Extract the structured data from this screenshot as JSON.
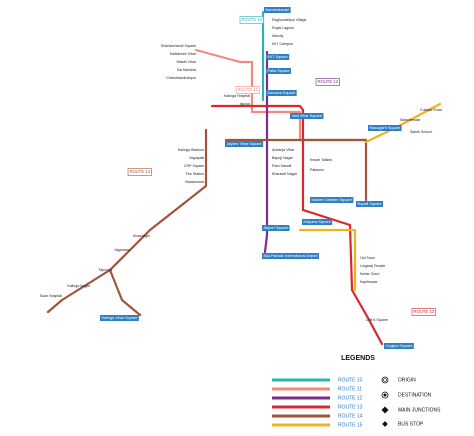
{
  "route_labels": [
    "ROUTE 10",
    "ROUTE 12",
    "ROUTE 11",
    "ROUTE 14",
    "ROUTE 13"
  ],
  "stops": [
    {
      "label": "Nandankanan",
      "main": true
    },
    {
      "label": "KIIT Square",
      "main": true
    },
    {
      "label": "Patia Square",
      "main": true
    },
    {
      "label": "Damana Square",
      "main": true
    },
    {
      "label": "Jaydev Vihar Square",
      "main": true
    },
    {
      "label": "Vani Vihar Square",
      "main": true
    },
    {
      "label": "Rasulgarh Square",
      "main": true
    },
    {
      "label": "Master Canteen Square",
      "main": true
    },
    {
      "label": "Rupali Square",
      "main": true
    },
    {
      "label": "Kalpana Square",
      "main": true
    },
    {
      "label": "Airport Square",
      "main": true
    },
    {
      "label": "Biju Patnaik International Airport",
      "main": true
    },
    {
      "label": "Kalinga Vihar Square",
      "main": true
    },
    {
      "label": "Lingipur Square",
      "main": true
    },
    {
      "label": "Raghunathpur Village",
      "main": false
    },
    {
      "label": "Royal Lagoon",
      "main": false
    },
    {
      "label": "Infocity",
      "main": false
    },
    {
      "label": "KIIT Campus",
      "main": false
    },
    {
      "label": "Shikharchandi Square",
      "main": false
    },
    {
      "label": "Sailashree Vihar",
      "main": false
    },
    {
      "label": "Niladri Vihar",
      "main": false
    },
    {
      "label": "Sai Mandira",
      "main": false
    },
    {
      "label": "Chandrasekharpur",
      "main": false
    },
    {
      "label": "Kalinga Hospital",
      "main": false
    },
    {
      "label": "Iskcon",
      "main": false
    },
    {
      "label": "Kalinga Stadium",
      "main": false
    },
    {
      "label": "Nayapalli",
      "main": false
    },
    {
      "label": "CRP Square",
      "main": false
    },
    {
      "label": "Fire Station",
      "main": false
    },
    {
      "label": "Baramunda",
      "main": false
    },
    {
      "label": "Acharya Vihar",
      "main": false
    },
    {
      "label": "Bapuji Nagar",
      "main": false
    },
    {
      "label": "Ram Mandir",
      "main": false
    },
    {
      "label": "Kharavel Nagar",
      "main": false
    },
    {
      "label": "Kesari Talkies",
      "main": false
    },
    {
      "label": "Palasuni",
      "main": false
    },
    {
      "label": "Mancheswar",
      "main": false
    },
    {
      "label": "Sainik School",
      "main": false
    },
    {
      "label": "Cuttack Road",
      "main": false
    },
    {
      "label": "Khandagiri",
      "main": false
    },
    {
      "label": "Jagamara",
      "main": false
    },
    {
      "label": "Tapovan",
      "main": false
    },
    {
      "label": "Suan Hospital",
      "main": false
    },
    {
      "label": "Kalinga Nagar",
      "main": false
    },
    {
      "label": "Old Town",
      "main": false
    },
    {
      "label": "Lingaraj Temple",
      "main": false
    },
    {
      "label": "Kedar Gouri",
      "main": false
    },
    {
      "label": "Kapileswar",
      "main": false
    },
    {
      "label": "Unit 6 Square",
      "main": false
    }
  ],
  "legend": {
    "title": "LEGENDS",
    "routes": [
      {
        "name": "ROUTE 10",
        "color": "#2bb3b0"
      },
      {
        "name": "ROUTE 11",
        "color": "#f08a7e"
      },
      {
        "name": "ROUTE 12",
        "color": "#7d2b8b"
      },
      {
        "name": "ROUTE 13",
        "color": "#d7282f"
      },
      {
        "name": "ROUTE 14",
        "color": "#a0553a"
      },
      {
        "name": "ROUTE 15",
        "color": "#f3b21b"
      }
    ],
    "symbols": [
      "ORIGIN",
      "DESTINATION",
      "MAIN JUNCTIONS",
      "BUS STOP"
    ]
  }
}
